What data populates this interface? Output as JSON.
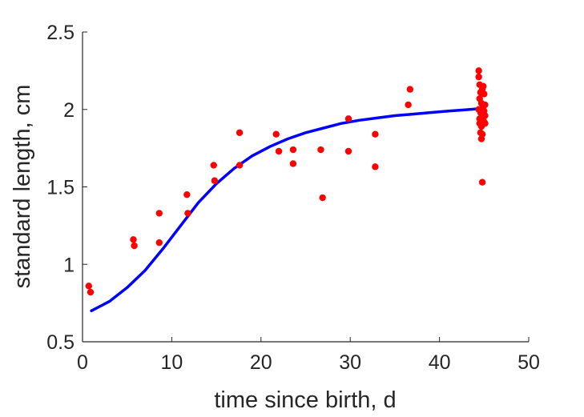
{
  "chart_data": {
    "type": "scatter",
    "title": "",
    "xlabel": "time since birth, d",
    "ylabel": "standard length, cm",
    "xlim": [
      0,
      50
    ],
    "ylim": [
      0.5,
      2.5
    ],
    "xticks": [
      0,
      10,
      20,
      30,
      40,
      50
    ],
    "xtick_labels": [
      "0",
      "10",
      "20",
      "30",
      "40",
      "50"
    ],
    "yticks": [
      0.5,
      1,
      1.5,
      2,
      2.5
    ],
    "ytick_labels": [
      "0.5",
      "1",
      "1.5",
      "2",
      "2.5"
    ],
    "grid": false,
    "series": [
      {
        "kind": "scatter",
        "color": "#ff0000",
        "points": [
          [
            0.7,
            0.86
          ],
          [
            0.9,
            0.82
          ],
          [
            5.7,
            1.16
          ],
          [
            5.8,
            1.12
          ],
          [
            8.6,
            1.33
          ],
          [
            8.6,
            1.14
          ],
          [
            11.7,
            1.45
          ],
          [
            11.8,
            1.33
          ],
          [
            14.7,
            1.64
          ],
          [
            14.8,
            1.54
          ],
          [
            17.6,
            1.85
          ],
          [
            17.6,
            1.64
          ],
          [
            21.7,
            1.84
          ],
          [
            22.0,
            1.73
          ],
          [
            23.6,
            1.74
          ],
          [
            23.6,
            1.65
          ],
          [
            26.7,
            1.74
          ],
          [
            26.9,
            1.43
          ],
          [
            29.8,
            1.94
          ],
          [
            29.8,
            1.73
          ],
          [
            32.8,
            1.84
          ],
          [
            32.8,
            1.63
          ],
          [
            36.5,
            2.03
          ],
          [
            36.7,
            2.13
          ],
          [
            44.4,
            2.25
          ],
          [
            44.4,
            2.21
          ],
          [
            44.5,
            2.16
          ],
          [
            44.6,
            2.11
          ],
          [
            44.8,
            2.13
          ],
          [
            44.9,
            2.15
          ],
          [
            45.0,
            2.1
          ],
          [
            44.5,
            2.07
          ],
          [
            44.7,
            2.04
          ],
          [
            44.9,
            2.02
          ],
          [
            45.1,
            2.03
          ],
          [
            44.4,
            2.0
          ],
          [
            44.6,
            1.98
          ],
          [
            44.8,
            1.98
          ],
          [
            45.0,
            1.99
          ],
          [
            45.1,
            1.96
          ],
          [
            44.5,
            1.94
          ],
          [
            44.7,
            1.93
          ],
          [
            45.0,
            1.92
          ],
          [
            45.1,
            1.91
          ],
          [
            44.5,
            1.91
          ],
          [
            44.7,
            1.89
          ],
          [
            44.6,
            1.85
          ],
          [
            44.8,
            1.84
          ],
          [
            44.7,
            1.81
          ],
          [
            44.8,
            1.53
          ]
        ]
      },
      {
        "kind": "line",
        "color": "#0000ff",
        "points": [
          [
            1,
            0.7
          ],
          [
            3,
            0.76
          ],
          [
            5,
            0.85
          ],
          [
            7,
            0.96
          ],
          [
            9,
            1.1
          ],
          [
            11,
            1.25
          ],
          [
            13,
            1.4
          ],
          [
            15,
            1.52
          ],
          [
            17,
            1.62
          ],
          [
            19,
            1.7
          ],
          [
            21,
            1.76
          ],
          [
            23,
            1.81
          ],
          [
            25,
            1.85
          ],
          [
            27,
            1.88
          ],
          [
            29,
            1.91
          ],
          [
            31,
            1.93
          ],
          [
            33,
            1.945
          ],
          [
            35,
            1.96
          ],
          [
            37,
            1.97
          ],
          [
            39,
            1.98
          ],
          [
            41,
            1.99
          ],
          [
            43,
            1.998
          ],
          [
            44.5,
            2.005
          ]
        ]
      }
    ]
  }
}
